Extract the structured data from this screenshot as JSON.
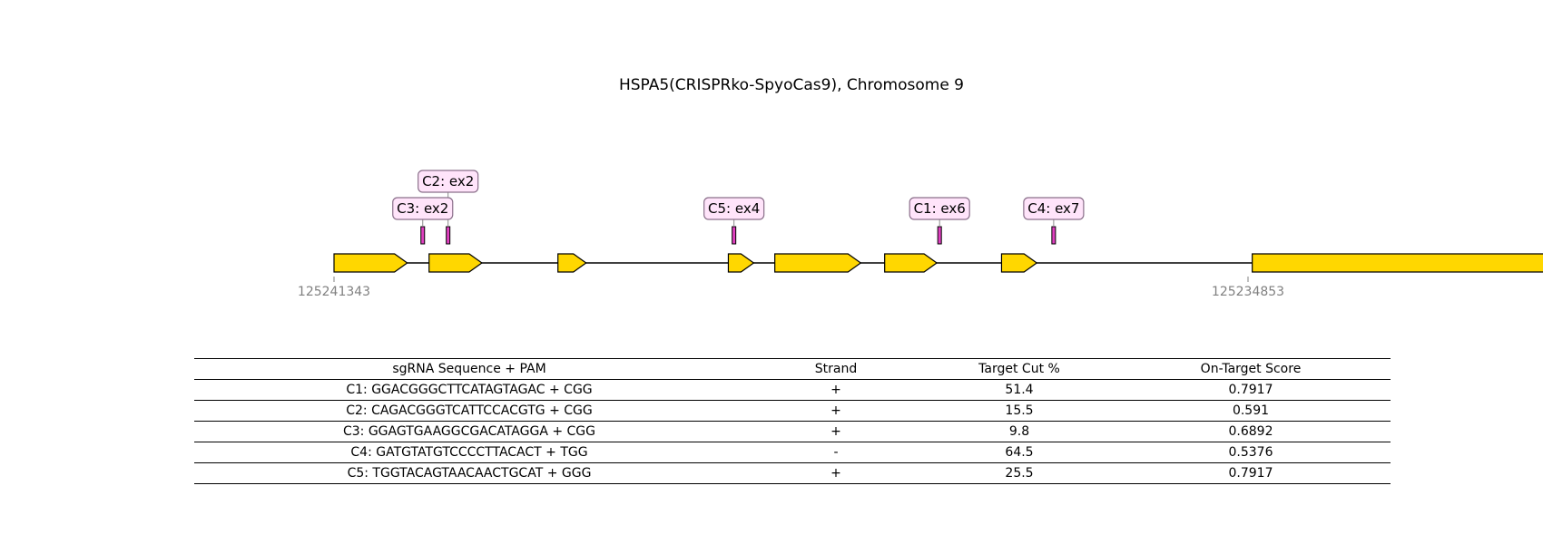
{
  "figure": {
    "title": "HSPA5(CRISPRko-SpyoCas9), Chromosome 9",
    "gene": {
      "start_coord": "125241343",
      "end_coord": "125234853",
      "exons": [
        {
          "start": 125241343,
          "end": 125240823
        },
        {
          "start": 125240668,
          "end": 125240293
        },
        {
          "start": 125239753,
          "end": 125239553
        },
        {
          "start": 125238543,
          "end": 125238363
        },
        {
          "start": 125238213,
          "end": 125237603
        },
        {
          "start": 125237433,
          "end": 125237063
        },
        {
          "start": 125236603,
          "end": 125236353
        },
        {
          "start": 125234823,
          "end": 125231373
        }
      ]
    },
    "guides": [
      {
        "id": "C1",
        "label": "C1: ex6",
        "position": 125237043,
        "row": 1
      },
      {
        "id": "C2",
        "label": "C2: ex2",
        "position": 125240533,
        "row": 2
      },
      {
        "id": "C3",
        "label": "C3: ex2",
        "position": 125240713,
        "row": 1
      },
      {
        "id": "C4",
        "label": "C4: ex7",
        "position": 125236233,
        "row": 1
      },
      {
        "id": "C5",
        "label": "C5: ex4",
        "position": 125238503,
        "row": 1
      }
    ],
    "colors": {
      "exon_fill": "#ffd700",
      "exon_stroke": "#000000",
      "guide_marker_fill": "#e040c0",
      "label_fill": "#ffe4fa",
      "label_stroke": "#8a6f8a"
    }
  },
  "table": {
    "headers": [
      "sgRNA Sequence + PAM",
      "Strand",
      "Target Cut %",
      "On-Target Score"
    ],
    "rows": [
      [
        "C1: GGACGGGCTTCATAGTAGAC + CGG",
        "+",
        "51.4",
        "0.7917"
      ],
      [
        "C2: CAGACGGGTCATTCCACGTG + CGG",
        "+",
        "15.5",
        "0.591"
      ],
      [
        "C3: GGAGTGAAGGCGACATAGGA + CGG",
        "+",
        "9.8",
        "0.6892"
      ],
      [
        "C4: GATGTATGTCCCCTTACACT + TGG",
        "-",
        "64.5",
        "0.5376"
      ],
      [
        "C5: TGGTACAGTAACAACTGCAT + GGG",
        "+",
        "25.5",
        "0.7917"
      ]
    ]
  }
}
